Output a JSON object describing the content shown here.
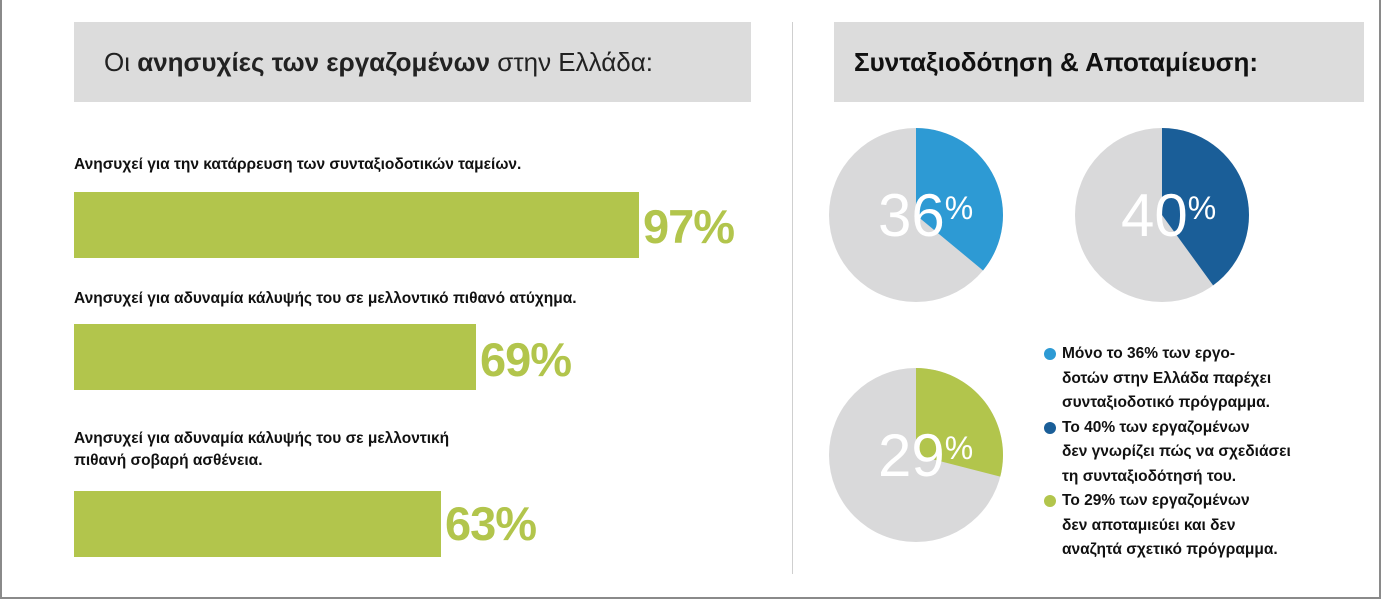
{
  "left_panel": {
    "title_prefix": "Οι ",
    "title_bold": "ανησυχίες των εργαζομένων",
    "title_suffix": " στην Ελλάδα:"
  },
  "right_panel": {
    "title": "Συνταξιοδότηση & Αποταμίευση:"
  },
  "colors": {
    "bar": "#b2c54c",
    "pie_rest": "#d9d9da",
    "pie_36": "#2d9ad4",
    "pie_40": "#1a5e98",
    "pie_29": "#b2c54c"
  },
  "chart_data": [
    {
      "type": "bar",
      "orientation": "horizontal",
      "categories": [
        "Ανησυχεί για την κατάρρευση των συνταξιοδοτικών ταμείων.",
        "Ανησυχεί για αδυναμία κάλυψής του σε μελλοντικό πιθανό ατύχημα.",
        "Ανησυχεί για αδυναμία κάλυψής του σε μελλοντική\nπιθανή σοβαρή ασθένεια."
      ],
      "values": [
        97,
        69,
        63
      ],
      "value_labels": [
        "97%",
        "69%",
        "63%"
      ],
      "xlim": [
        0,
        100
      ]
    },
    {
      "type": "pie",
      "slices": [
        {
          "value": 36,
          "label_number": "36",
          "label_unit": "%"
        },
        {
          "value": 40,
          "label_number": "40",
          "label_unit": "%"
        },
        {
          "value": 29,
          "label_number": "29",
          "label_unit": "%"
        }
      ],
      "legend": [
        {
          "text": "Μόνο το 36% των εργο-\nδοτών στην Ελλάδα παρέχει\nσυνταξιοδοτικό πρόγραμμα.",
          "color": "#2d9ad4"
        },
        {
          "text": "Το 40% των εργαζομένων\nδεν γνωρίζει πώς να σχεδιάσει\nτη συνταξιοδότησή του.",
          "color": "#1a5e98"
        },
        {
          "text": "Το 29% των εργαζομένων\nδεν αποταμιεύει και δεν\nαναζητά σχετικό πρόγραμμα.",
          "color": "#b2c54c"
        }
      ]
    }
  ]
}
